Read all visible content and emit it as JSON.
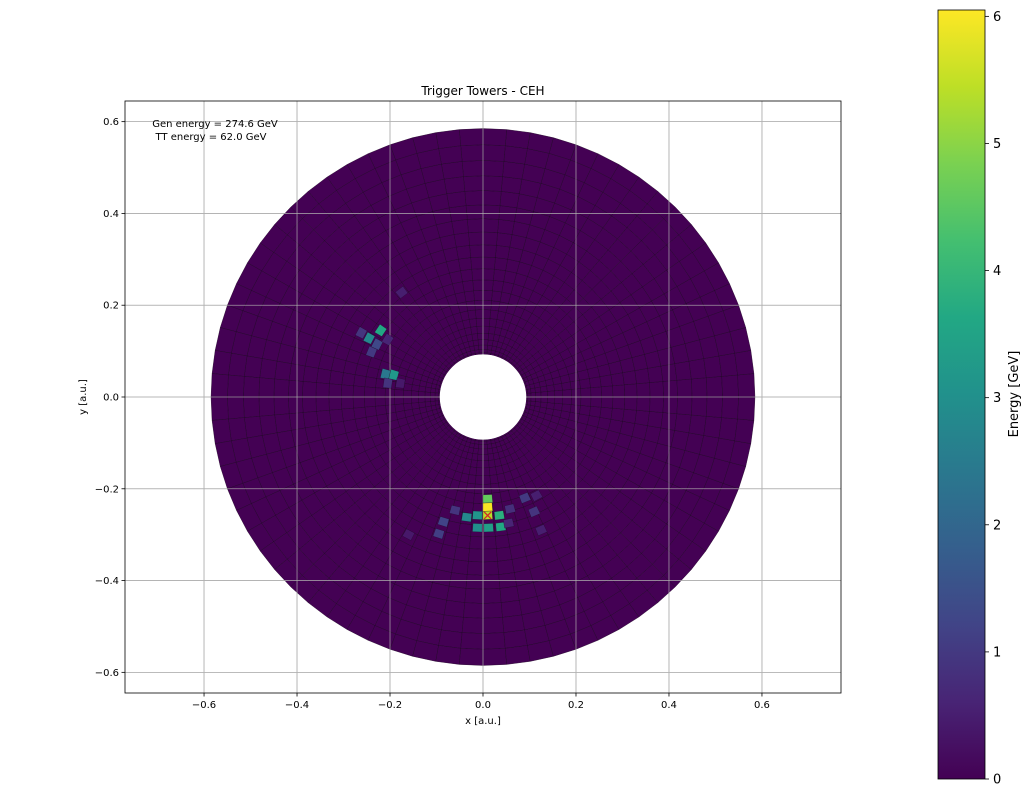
{
  "chart_data": {
    "type": "heatmap",
    "title": "Trigger Towers - CEH",
    "xlabel": "x [a.u.]",
    "ylabel": "y [a.u.]",
    "xlim": [
      -0.77,
      0.77
    ],
    "ylim": [
      -0.645,
      0.645
    ],
    "x_ticks": [
      -0.6,
      -0.4,
      -0.2,
      0.0,
      0.2,
      0.4,
      0.6
    ],
    "x_tick_labels": [
      "−0.6",
      "−0.4",
      "−0.2",
      "0.0",
      "0.2",
      "0.4",
      "0.6"
    ],
    "y_ticks": [
      0.6,
      0.4,
      0.2,
      0.0,
      -0.2,
      -0.4,
      -0.6
    ],
    "y_tick_labels": [
      "0.6",
      "0.4",
      "0.2",
      "0.0",
      "−0.2",
      "−0.4",
      "−0.6"
    ],
    "grid": true,
    "annotations": [
      "Gen energy = 274.6 GeV",
      "TT energy = 62.0 GeV"
    ],
    "ring": {
      "r_inner": 0.093,
      "r_outer": 0.585,
      "n_rings": 22,
      "n_phi": 72
    },
    "colorbar": {
      "label": "Energy [GeV]",
      "min": 0,
      "max": 6.05,
      "ticks": [
        0,
        1,
        2,
        3,
        4,
        5,
        6
      ],
      "tick_labels": [
        "0",
        "1",
        "2",
        "3",
        "4",
        "5",
        "6"
      ],
      "colormap": "viridis"
    },
    "gen_marker": {
      "x": 0.01,
      "y": -0.258,
      "color": "#d62728"
    },
    "hot_towers": [
      {
        "x": 0.01,
        "y": -0.222,
        "e": 4.6
      },
      {
        "x": 0.01,
        "y": -0.24,
        "e": 6.0
      },
      {
        "x": 0.01,
        "y": -0.258,
        "e": 5.4
      },
      {
        "x": 0.035,
        "y": -0.258,
        "e": 3.8
      },
      {
        "x": -0.012,
        "y": -0.258,
        "e": 3.1
      },
      {
        "x": 0.012,
        "y": -0.285,
        "e": 3.4
      },
      {
        "x": -0.012,
        "y": -0.285,
        "e": 3.0
      },
      {
        "x": 0.038,
        "y": -0.283,
        "e": 3.6
      },
      {
        "x": -0.035,
        "y": -0.262,
        "e": 2.8
      },
      {
        "x": -0.06,
        "y": -0.247,
        "e": 0.9
      },
      {
        "x": 0.058,
        "y": -0.244,
        "e": 0.8
      },
      {
        "x": -0.085,
        "y": -0.272,
        "e": 1.2
      },
      {
        "x": 0.055,
        "y": -0.275,
        "e": 0.6
      },
      {
        "x": -0.095,
        "y": -0.298,
        "e": 1.1
      },
      {
        "x": 0.09,
        "y": -0.22,
        "e": 1.0
      },
      {
        "x": 0.11,
        "y": -0.25,
        "e": 0.9
      },
      {
        "x": 0.115,
        "y": -0.215,
        "e": 0.5
      },
      {
        "x": 0.125,
        "y": -0.29,
        "e": 0.5
      },
      {
        "x": -0.16,
        "y": -0.3,
        "e": 0.4
      },
      {
        "x": -0.175,
        "y": 0.228,
        "e": 0.5
      },
      {
        "x": -0.22,
        "y": 0.145,
        "e": 3.6
      },
      {
        "x": -0.245,
        "y": 0.128,
        "e": 2.8
      },
      {
        "x": -0.262,
        "y": 0.14,
        "e": 0.9
      },
      {
        "x": -0.228,
        "y": 0.115,
        "e": 1.3
      },
      {
        "x": -0.24,
        "y": 0.098,
        "e": 1.0
      },
      {
        "x": -0.205,
        "y": 0.125,
        "e": 0.6
      },
      {
        "x": -0.192,
        "y": 0.048,
        "e": 3.2
      },
      {
        "x": -0.21,
        "y": 0.05,
        "e": 2.4
      },
      {
        "x": -0.205,
        "y": 0.03,
        "e": 0.9
      },
      {
        "x": -0.178,
        "y": 0.03,
        "e": 0.4
      }
    ]
  }
}
